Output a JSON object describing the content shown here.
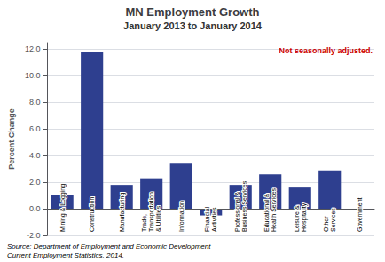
{
  "chart_data": {
    "type": "bar",
    "title": "MN Employment Growth",
    "subtitle": "January 2013 to January 2014",
    "categories": [
      "Mining & Logging",
      "Construction",
      "Manufacturing",
      "Trade,\nTransportation\n& Utilities",
      "Information",
      "Financial\nActivities",
      "Professional &\nBusiness Services",
      "Educational &\nHealth Services",
      "Leisure &\nHospitality",
      "Other\nServices",
      "Government"
    ],
    "values": [
      1.0,
      11.8,
      1.8,
      2.3,
      3.4,
      -0.5,
      1.8,
      2.6,
      1.6,
      2.9,
      0.0
    ],
    "color": "#2e3f8f",
    "ylabel": "Percent Change",
    "ylim": [
      -2.0,
      12.5
    ],
    "yticks": [
      {
        "value": -2.0,
        "label": "-2.0"
      },
      {
        "value": 0.0,
        "label": "0.0"
      },
      {
        "value": 2.0,
        "label": "2.0"
      },
      {
        "value": 4.0,
        "label": "4.0"
      },
      {
        "value": 6.0,
        "label": "6.0"
      },
      {
        "value": 8.0,
        "label": "8.0"
      },
      {
        "value": 10.0,
        "label": "10.0"
      },
      {
        "value": 12.0,
        "label": "12.0"
      }
    ],
    "grid": true,
    "annotation": {
      "text": "Not seasonally adjusted.",
      "color": "#cc0000"
    },
    "source": "Source: Department of Employment and Economic Development\nCurrent Employment Statistics, 2014."
  }
}
